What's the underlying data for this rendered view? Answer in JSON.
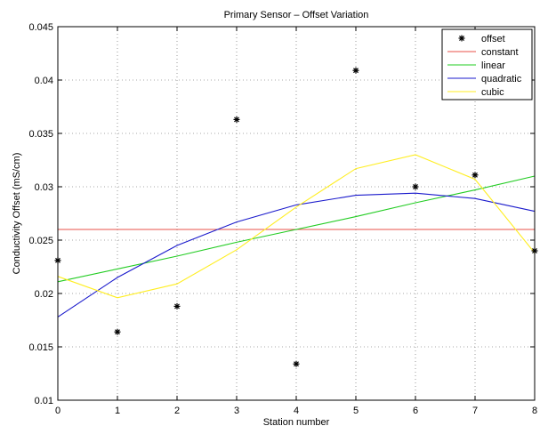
{
  "chart_data": {
    "type": "line",
    "title": "Primary Sensor – Offset Variation",
    "xlabel": "Station number",
    "ylabel": "Conductivity Offset (mS/cm)",
    "xlim": [
      0,
      8
    ],
    "ylim": [
      0.01,
      0.045
    ],
    "x_ticks": [
      "0",
      "1",
      "2",
      "3",
      "4",
      "5",
      "6",
      "7",
      "8"
    ],
    "y_ticks": [
      "0.01",
      "0.015",
      "0.02",
      "0.025",
      "0.03",
      "0.035",
      "0.04",
      "0.045"
    ],
    "grid": true,
    "legend_position": "top-right",
    "x": [
      0,
      1,
      2,
      3,
      4,
      5,
      6,
      7,
      8
    ],
    "series": [
      {
        "name": "offset",
        "style": "markers",
        "marker": "asterisk",
        "color": "#000000",
        "values": [
          0.0231,
          0.0164,
          0.0188,
          0.0363,
          0.0134,
          0.0409,
          0.03,
          0.0311,
          0.024
        ]
      },
      {
        "name": "constant",
        "style": "line",
        "color": "#e8524a",
        "values": [
          0.026,
          0.026,
          0.026,
          0.026,
          0.026,
          0.026,
          0.026,
          0.026,
          0.026
        ]
      },
      {
        "name": "linear",
        "style": "line",
        "color": "#22cc22",
        "values": [
          0.0211,
          0.0223,
          0.0235,
          0.0248,
          0.026,
          0.0272,
          0.0285,
          0.0297,
          0.031
        ]
      },
      {
        "name": "quadratic",
        "style": "line",
        "color": "#1a1acc",
        "values": [
          0.0178,
          0.0215,
          0.0245,
          0.0267,
          0.0283,
          0.0292,
          0.0294,
          0.0289,
          0.0277
        ]
      },
      {
        "name": "cubic",
        "style": "line",
        "color": "#ffee22",
        "values": [
          0.0216,
          0.0196,
          0.0209,
          0.0241,
          0.0281,
          0.0317,
          0.033,
          0.0307,
          0.0238
        ]
      }
    ]
  }
}
